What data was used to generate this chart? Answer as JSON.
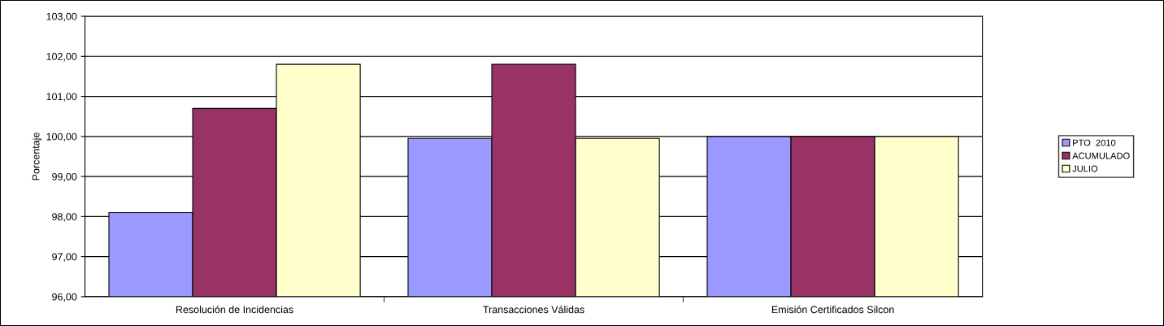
{
  "chart_data": {
    "type": "bar",
    "ylabel": "Porcentaje",
    "categories": [
      "Resolución de Incidencias",
      "Transacciones Válidas",
      "Emisión Certificados Silcon"
    ],
    "series": [
      {
        "name": "PTO  2010",
        "color": "#9999ff",
        "values": [
          98.1,
          99.95,
          100.0
        ]
      },
      {
        "name": "ACUMULADO",
        "color": "#993366",
        "values": [
          100.7,
          101.8,
          100.0
        ]
      },
      {
        "name": "JULIO",
        "color": "#ffffcc",
        "values": [
          101.8,
          99.95,
          100.0
        ]
      }
    ],
    "ylim": [
      96,
      103
    ],
    "yticks": [
      {
        "value": 96,
        "label": "96,00"
      },
      {
        "value": 97,
        "label": "97,00"
      },
      {
        "value": 98,
        "label": "98,00"
      },
      {
        "value": 99,
        "label": "99,00"
      },
      {
        "value": 100,
        "label": "100,00"
      },
      {
        "value": 101,
        "label": "101,00"
      },
      {
        "value": 102,
        "label": "102,00"
      },
      {
        "value": 103,
        "label": "103,00"
      }
    ],
    "grid": "y",
    "legend": "right"
  }
}
